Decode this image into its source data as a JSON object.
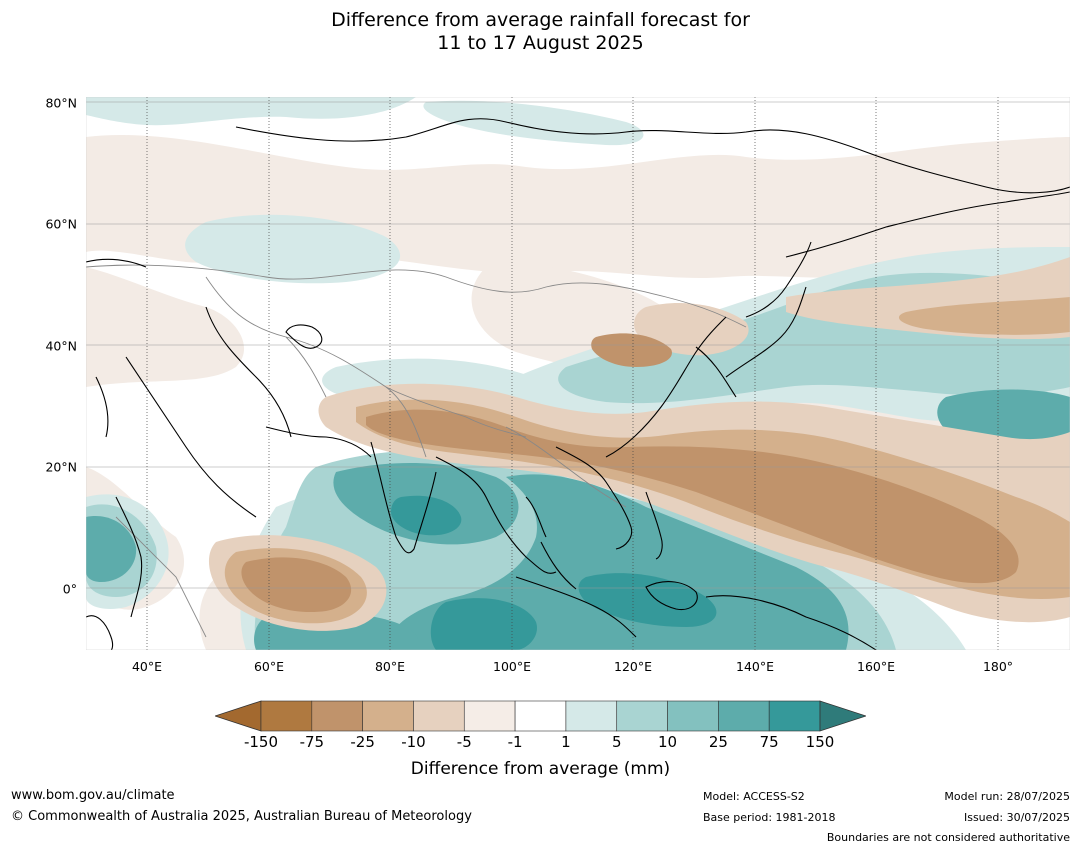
{
  "title": {
    "line1": "Difference from average rainfall forecast for",
    "line2": "11 to 17 August 2025"
  },
  "axes": {
    "lat_labels": [
      "80°N",
      "60°N",
      "40°N",
      "20°N",
      "0°"
    ],
    "lon_labels": [
      "40°E",
      "60°E",
      "80°E",
      "100°E",
      "120°E",
      "140°E",
      "160°E",
      "180°"
    ],
    "lat_range": [
      -10,
      80
    ],
    "lon_range": [
      30,
      190
    ]
  },
  "colorbar": {
    "title": "Difference from average (mm)",
    "tick_labels": [
      "-150",
      "-75",
      "-25",
      "-10",
      "-5",
      "-1",
      "1",
      "5",
      "10",
      "25",
      "75",
      "150"
    ],
    "colors": [
      "#a3692f",
      "#af7940",
      "#c0936b",
      "#d4b08c",
      "#e6d1bf",
      "#f5ede7",
      "#ffffff",
      "#d5e9e8",
      "#a9d4d2",
      "#83c1bf",
      "#5dacab",
      "#35999a",
      "#2f7b7a"
    ]
  },
  "footer": {
    "website": "www.bom.gov.au/climate",
    "copyright": "© Commonwealth of Australia 2025, Australian Bureau of Meteorology",
    "model": "Model: ACCESS-S2",
    "base_period": "Base period: 1981-2018",
    "model_run": "Model run: 28/07/2025",
    "issued": "Issued: 30/07/2025",
    "disclaimer": "Boundaries are not considered authoritative"
  }
}
